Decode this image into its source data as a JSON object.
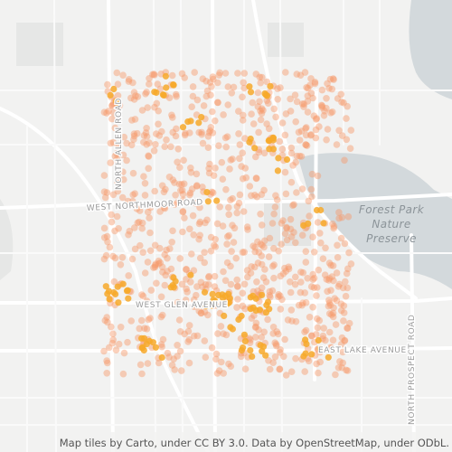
{
  "map": {
    "road_labels": {
      "north_allen": "NORTH ALLEN ROAD",
      "west_northmoor": "WEST NORTHMOOR ROAD",
      "west_glen": "WEST GLEN AVENUE",
      "east_lake": "EAST LAKE AVENUE",
      "north_prospect": "NORTH PROSPECT ROAD"
    },
    "park_label": [
      "Forest Park",
      "Nature",
      "Preserve"
    ],
    "attribution": "Map tiles by Carto, under CC BY 3.0. Data by OpenStreetMap, under ODbL."
  }
}
